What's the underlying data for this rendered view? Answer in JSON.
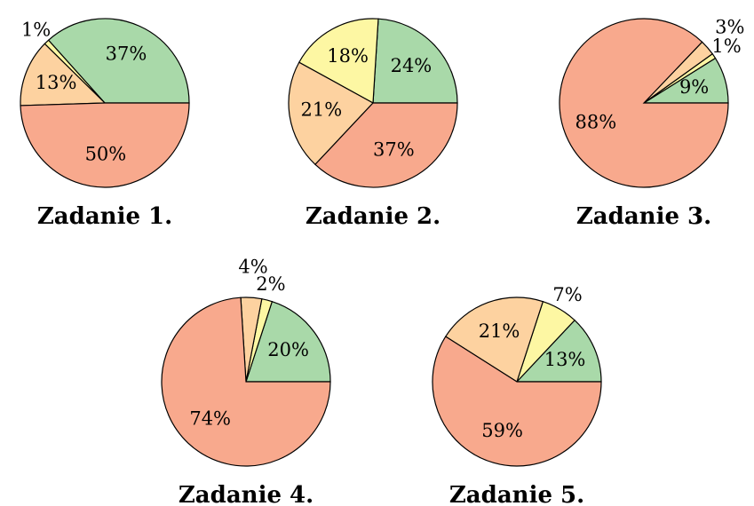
{
  "chart_data": [
    {
      "type": "pie",
      "title": "Zadanie 1.",
      "values": [
        37,
        1,
        13,
        50
      ],
      "value_labels": [
        "37%",
        "1%",
        "13%",
        "50%"
      ],
      "colors": [
        "#a9d9a9",
        "#fdf7a3",
        "#fdd2a0",
        "#f8a98d"
      ]
    },
    {
      "type": "pie",
      "title": "Zadanie 2.",
      "values": [
        24,
        18,
        21,
        37
      ],
      "value_labels": [
        "24%",
        "18%",
        "21%",
        "37%"
      ],
      "colors": [
        "#a9d9a9",
        "#fdf7a3",
        "#fdd2a0",
        "#f8a98d"
      ]
    },
    {
      "type": "pie",
      "title": "Zadanie 3.",
      "values": [
        9,
        1,
        3,
        88
      ],
      "value_labels": [
        "9%",
        "1%",
        "3%",
        "88%"
      ],
      "colors": [
        "#a9d9a9",
        "#fdf7a3",
        "#fdd2a0",
        "#f8a98d"
      ]
    },
    {
      "type": "pie",
      "title": "Zadanie 4.",
      "values": [
        20,
        2,
        4,
        74
      ],
      "value_labels": [
        "20%",
        "2%",
        "4%",
        "74%"
      ],
      "colors": [
        "#a9d9a9",
        "#fdf7a3",
        "#fdd2a0",
        "#f8a98d"
      ]
    },
    {
      "type": "pie",
      "title": "Zadanie 5.",
      "values": [
        13,
        7,
        21,
        59
      ],
      "value_labels": [
        "13%",
        "7%",
        "21%",
        "59%"
      ],
      "colors": [
        "#a9d9a9",
        "#fdf7a3",
        "#fdd2a0",
        "#f8a98d"
      ]
    }
  ]
}
